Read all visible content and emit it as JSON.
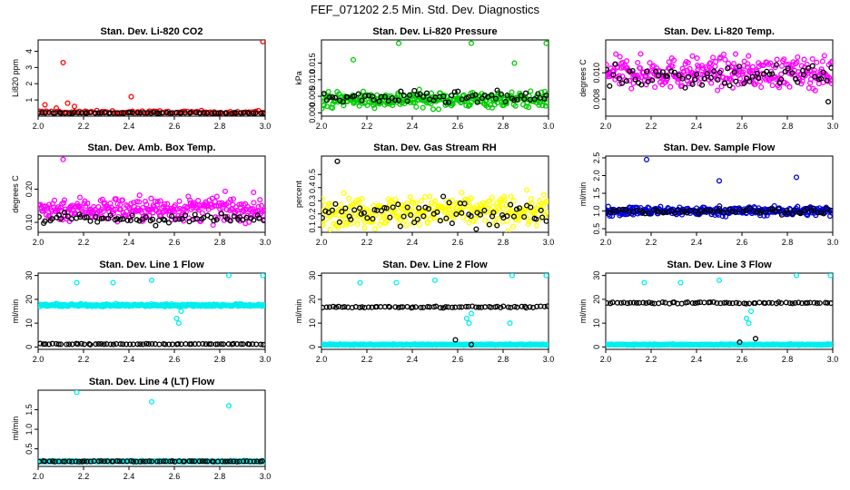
{
  "figure_title": "FEF_071202  2.5 Min. Std. Dev. Diagnostics",
  "chart_data": [
    {
      "type": "scatter",
      "title": "Stan. Dev. Li-820 CO2",
      "ylabel": "Li820 ppm",
      "xlim": [
        2.0,
        3.0
      ],
      "ylim": [
        0,
        4.7
      ],
      "xticks": [
        "2.0",
        "2.2",
        "2.4",
        "2.6",
        "2.8",
        "3.0"
      ],
      "yticks": [
        {
          "v": 1,
          "label": "1"
        },
        {
          "v": 2,
          "label": "2"
        },
        {
          "v": 3,
          "label": "3"
        },
        {
          "v": 4,
          "label": "4"
        }
      ],
      "series": [
        {
          "name": "red",
          "color": "#ff0000",
          "base": 0.25,
          "spread": 0.08,
          "count": 90,
          "outliers": [
            [
              2.03,
              0.7
            ],
            [
              2.08,
              0.5
            ],
            [
              2.11,
              3.3
            ],
            [
              2.13,
              0.8
            ],
            [
              2.16,
              0.6
            ],
            [
              2.41,
              1.2
            ],
            [
              2.99,
              4.6
            ]
          ]
        },
        {
          "name": "black",
          "color": "#000000",
          "base": 0.2,
          "spread": 0.03,
          "count": 70,
          "outliers": []
        }
      ]
    },
    {
      "type": "scatter",
      "title": "Stan. Dev. Li-820 Pressure",
      "ylabel": "kPa",
      "xlim": [
        2.0,
        3.0
      ],
      "ylim": [
        -0.001,
        0.022
      ],
      "xticks": [
        "2.0",
        "2.2",
        "2.4",
        "2.6",
        "2.8",
        "3.0"
      ],
      "yticks": [
        {
          "v": 0,
          "label": "0.000"
        },
        {
          "v": 0.005,
          "label": "0.005"
        },
        {
          "v": 0.01,
          "label": "0.010"
        },
        {
          "v": 0.015,
          "label": "0.015"
        }
      ],
      "series": [
        {
          "name": "green",
          "color": "#00cc00",
          "base": 0.004,
          "spread": 0.0022,
          "count": 300,
          "outliers": [
            [
              2.14,
              0.016
            ],
            [
              2.34,
              0.021
            ],
            [
              2.66,
              0.021
            ],
            [
              2.85,
              0.015
            ],
            [
              2.99,
              0.021
            ]
          ]
        },
        {
          "name": "black",
          "color": "#000000",
          "base": 0.0045,
          "spread": 0.0018,
          "count": 70,
          "outliers": []
        }
      ]
    },
    {
      "type": "scatter",
      "title": "Stan. Dev. Li-820 Temp.",
      "ylabel": "degrees C",
      "xlim": [
        2.0,
        3.0
      ],
      "ylim": [
        0.0067,
        0.0125
      ],
      "xticks": [
        "2.0",
        "2.2",
        "2.4",
        "2.6",
        "2.8",
        "3.0"
      ],
      "yticks": [
        {
          "v": 0.008,
          "label": "0.008"
        },
        {
          "v": 0.01,
          "label": "0.010"
        }
      ],
      "series": [
        {
          "name": "magenta",
          "color": "#ff00ff",
          "base": 0.01,
          "spread": 0.0011,
          "count": 320,
          "outliers": []
        },
        {
          "name": "black",
          "color": "#000000",
          "base": 0.0098,
          "spread": 0.0009,
          "count": 70,
          "outliers": [
            [
              2.98,
              0.0078
            ]
          ]
        }
      ]
    },
    {
      "type": "scatter",
      "title": "Stan. Dev. Amb. Box Temp.",
      "ylabel": "degrees C",
      "xlim": [
        2.0,
        3.0
      ],
      "ylim": [
        0.07,
        0.3
      ],
      "xticks": [
        "2.0",
        "2.2",
        "2.4",
        "2.6",
        "2.8",
        "3.0"
      ],
      "yticks": [
        {
          "v": 0.1,
          "label": "0.10"
        },
        {
          "v": 0.2,
          "label": "0.20"
        }
      ],
      "series": [
        {
          "name": "magenta",
          "color": "#ff00ff",
          "base": 0.14,
          "spread": 0.035,
          "count": 300,
          "outliers": [
            [
              2.11,
              0.29
            ]
          ]
        },
        {
          "name": "black",
          "color": "#000000",
          "base": 0.11,
          "spread": 0.015,
          "count": 70,
          "outliers": []
        }
      ]
    },
    {
      "type": "scatter",
      "title": "Stan. Dev. Gas Stream RH",
      "ylabel": "percent",
      "xlim": [
        2.0,
        3.0
      ],
      "ylim": [
        0.06,
        0.64
      ],
      "xticks": [
        "2.0",
        "2.2",
        "2.4",
        "2.6",
        "2.8",
        "3.0"
      ],
      "yticks": [
        {
          "v": 0.1,
          "label": "0.1"
        },
        {
          "v": 0.2,
          "label": "0.2"
        },
        {
          "v": 0.3,
          "label": "0.3"
        },
        {
          "v": 0.4,
          "label": "0.4"
        },
        {
          "v": 0.5,
          "label": "0.5"
        }
      ],
      "series": [
        {
          "name": "yellow",
          "color": "#ffff00",
          "base": 0.22,
          "spread": 0.11,
          "count": 320,
          "outliers": []
        },
        {
          "name": "black",
          "color": "#000000",
          "base": 0.2,
          "spread": 0.09,
          "count": 70,
          "outliers": [
            [
              2.07,
              0.6
            ]
          ]
        }
      ]
    },
    {
      "type": "scatter",
      "title": "Stan. Dev. Sample Flow",
      "ylabel": "ml/min",
      "xlim": [
        2.0,
        3.0
      ],
      "ylim": [
        0.4,
        2.55
      ],
      "xticks": [
        "2.0",
        "2.2",
        "2.4",
        "2.6",
        "2.8",
        "3.0"
      ],
      "yticks": [
        {
          "v": 0.5,
          "label": "0.5"
        },
        {
          "v": 1.0,
          "label": "1.0"
        },
        {
          "v": 1.5,
          "label": "1.5"
        },
        {
          "v": 2.0,
          "label": "2.0"
        },
        {
          "v": 2.5,
          "label": "2.5"
        }
      ],
      "series": [
        {
          "name": "blue",
          "color": "#0000dd",
          "base": 1.0,
          "spread": 0.12,
          "count": 300,
          "outliers": [
            [
              2.18,
              2.45
            ],
            [
              2.5,
              1.85
            ],
            [
              2.84,
              1.95
            ]
          ]
        },
        {
          "name": "black",
          "color": "#000000",
          "base": 1.0,
          "spread": 0.08,
          "count": 70,
          "outliers": []
        }
      ]
    },
    {
      "type": "scatter",
      "title": "Stan. Dev. Line 1 Flow",
      "ylabel": "ml/min",
      "xlim": [
        2.0,
        3.0
      ],
      "ylim": [
        -1,
        31
      ],
      "xticks": [
        "2.0",
        "2.2",
        "2.4",
        "2.6",
        "2.8",
        "3.0"
      ],
      "yticks": [
        {
          "v": 0,
          "label": "0"
        },
        {
          "v": 10,
          "label": "10"
        },
        {
          "v": 20,
          "label": "20"
        },
        {
          "v": 30,
          "label": "30"
        }
      ],
      "series": [
        {
          "name": "cyan",
          "color": "#00eeee",
          "base": 17.5,
          "spread": 0.5,
          "count": 300,
          "outliers": [
            [
              2.17,
              27
            ],
            [
              2.33,
              27
            ],
            [
              2.5,
              28
            ],
            [
              2.61,
              12
            ],
            [
              2.62,
              10
            ],
            [
              2.63,
              15
            ],
            [
              2.84,
              30
            ],
            [
              2.99,
              30
            ]
          ]
        },
        {
          "name": "black",
          "color": "#000000",
          "base": 1.2,
          "spread": 0.2,
          "count": 70,
          "outliers": []
        }
      ]
    },
    {
      "type": "scatter",
      "title": "Stan. Dev. Line 2 Flow",
      "ylabel": "ml/min",
      "xlim": [
        2.0,
        3.0
      ],
      "ylim": [
        -1,
        31
      ],
      "xticks": [
        "2.0",
        "2.2",
        "2.4",
        "2.6",
        "2.8",
        "3.0"
      ],
      "yticks": [
        {
          "v": 0,
          "label": "0"
        },
        {
          "v": 10,
          "label": "10"
        },
        {
          "v": 20,
          "label": "20"
        },
        {
          "v": 30,
          "label": "30"
        }
      ],
      "series": [
        {
          "name": "cyan",
          "color": "#00eeee",
          "base": 1.0,
          "spread": 0.2,
          "count": 300,
          "outliers": [
            [
              2.17,
              27
            ],
            [
              2.33,
              27
            ],
            [
              2.5,
              28
            ],
            [
              2.64,
              12
            ],
            [
              2.65,
              10
            ],
            [
              2.66,
              14
            ],
            [
              2.84,
              30
            ],
            [
              2.99,
              30
            ],
            [
              2.83,
              10
            ]
          ]
        },
        {
          "name": "black",
          "color": "#000000",
          "base": 16.8,
          "spread": 0.3,
          "count": 70,
          "outliers": [
            [
              2.59,
              3
            ],
            [
              2.66,
              1
            ]
          ]
        }
      ]
    },
    {
      "type": "scatter",
      "title": "Stan. Dev. Line 3 Flow",
      "ylabel": "ml/min",
      "xlim": [
        2.0,
        3.0
      ],
      "ylim": [
        -1,
        31
      ],
      "xticks": [
        "2.0",
        "2.2",
        "2.4",
        "2.6",
        "2.8",
        "3.0"
      ],
      "yticks": [
        {
          "v": 0,
          "label": "0"
        },
        {
          "v": 10,
          "label": "10"
        },
        {
          "v": 20,
          "label": "20"
        },
        {
          "v": 30,
          "label": "30"
        }
      ],
      "series": [
        {
          "name": "cyan",
          "color": "#00eeee",
          "base": 1.0,
          "spread": 0.2,
          "count": 300,
          "outliers": [
            [
              2.17,
              27
            ],
            [
              2.33,
              27
            ],
            [
              2.5,
              28
            ],
            [
              2.62,
              12
            ],
            [
              2.63,
              10
            ],
            [
              2.64,
              15
            ],
            [
              2.84,
              30
            ],
            [
              2.99,
              30
            ]
          ]
        },
        {
          "name": "black",
          "color": "#000000",
          "base": 18.5,
          "spread": 0.3,
          "count": 70,
          "outliers": [
            [
              2.59,
              2
            ],
            [
              2.66,
              3.5
            ]
          ]
        }
      ]
    },
    {
      "type": "scatter",
      "title": "Stan. Dev. Line 4 (LT) Flow",
      "ylabel": "ml/min",
      "xlim": [
        2.0,
        3.0
      ],
      "ylim": [
        0.05,
        2.0
      ],
      "xticks": [
        "2.0",
        "2.2",
        "2.4",
        "2.6",
        "2.8",
        "3.0"
      ],
      "yticks": [
        {
          "v": 0.5,
          "label": "0.5"
        },
        {
          "v": 1.0,
          "label": "1.0"
        },
        {
          "v": 1.5,
          "label": "1.5"
        }
      ],
      "series": [
        {
          "name": "cyan",
          "color": "#00eeee",
          "base": 0.18,
          "spread": 0.015,
          "count": 300,
          "outliers": [
            [
              2.17,
              1.95
            ],
            [
              2.5,
              1.7
            ],
            [
              2.84,
              1.6
            ]
          ]
        },
        {
          "name": "black",
          "color": "#000000",
          "base": 0.18,
          "spread": 0.01,
          "count": 70,
          "outliers": []
        }
      ]
    }
  ]
}
